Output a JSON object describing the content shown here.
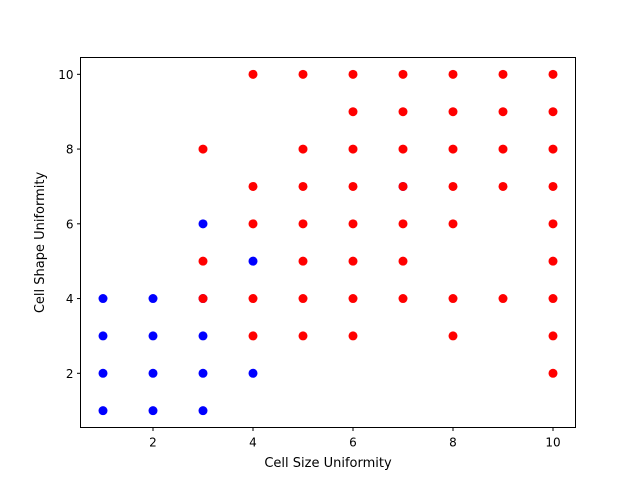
{
  "chart_data": {
    "type": "scatter",
    "title": "",
    "xlabel": "Cell Size Uniformity",
    "ylabel": "Cell Shape Uniformity",
    "xlim": [
      0.55,
      10.45
    ],
    "ylim": [
      0.55,
      10.45
    ],
    "xticks": [
      2,
      4,
      6,
      8,
      10
    ],
    "yticks": [
      2,
      4,
      6,
      8,
      10
    ],
    "grid": false,
    "legend": "none",
    "series": [
      {
        "color": "#0000ff",
        "points": [
          [
            1,
            1
          ],
          [
            1,
            2
          ],
          [
            1,
            3
          ],
          [
            1,
            4
          ],
          [
            2,
            1
          ],
          [
            2,
            2
          ],
          [
            2,
            3
          ],
          [
            2,
            4
          ],
          [
            3,
            1
          ],
          [
            3,
            2
          ],
          [
            3,
            3
          ],
          [
            3,
            4
          ],
          [
            3,
            6
          ],
          [
            4,
            2
          ],
          [
            4,
            5
          ],
          [
            7,
            7
          ]
        ]
      },
      {
        "color": "#ff0000",
        "points": [
          [
            3,
            4
          ],
          [
            3,
            5
          ],
          [
            3,
            8
          ],
          [
            4,
            3
          ],
          [
            4,
            4
          ],
          [
            4,
            6
          ],
          [
            4,
            7
          ],
          [
            4,
            10
          ],
          [
            5,
            3
          ],
          [
            5,
            4
          ],
          [
            5,
            5
          ],
          [
            5,
            6
          ],
          [
            5,
            7
          ],
          [
            5,
            8
          ],
          [
            5,
            10
          ],
          [
            6,
            3
          ],
          [
            6,
            4
          ],
          [
            6,
            5
          ],
          [
            6,
            6
          ],
          [
            6,
            7
          ],
          [
            6,
            8
          ],
          [
            6,
            9
          ],
          [
            6,
            10
          ],
          [
            7,
            4
          ],
          [
            7,
            5
          ],
          [
            7,
            6
          ],
          [
            7,
            7
          ],
          [
            7,
            8
          ],
          [
            7,
            9
          ],
          [
            7,
            10
          ],
          [
            8,
            3
          ],
          [
            8,
            4
          ],
          [
            8,
            6
          ],
          [
            8,
            7
          ],
          [
            8,
            8
          ],
          [
            8,
            9
          ],
          [
            8,
            10
          ],
          [
            9,
            4
          ],
          [
            9,
            7
          ],
          [
            9,
            8
          ],
          [
            9,
            9
          ],
          [
            9,
            10
          ],
          [
            10,
            2
          ],
          [
            10,
            3
          ],
          [
            10,
            4
          ],
          [
            10,
            5
          ],
          [
            10,
            6
          ],
          [
            10,
            7
          ],
          [
            10,
            8
          ],
          [
            10,
            9
          ],
          [
            10,
            10
          ]
        ]
      }
    ]
  }
}
